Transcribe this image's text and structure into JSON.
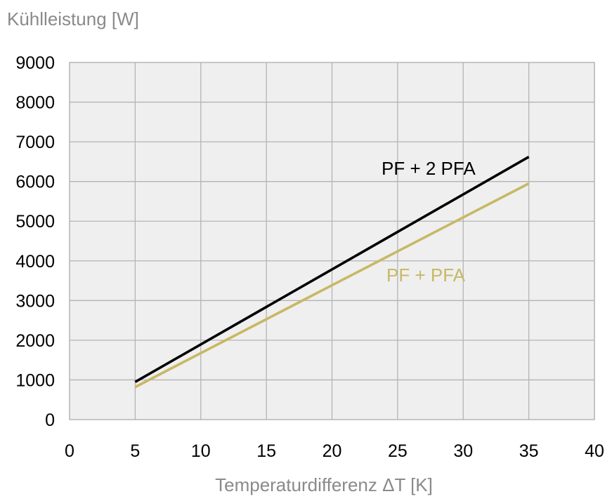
{
  "chart_data": {
    "type": "line",
    "ylabel": "Kühlleistung [W]",
    "xlabel": "Temperaturdifferenz ΔT [K]",
    "xlim": [
      0,
      40
    ],
    "ylim": [
      0,
      9000
    ],
    "x_ticks": [
      "0",
      "5",
      "10",
      "15",
      "20",
      "25",
      "30",
      "35",
      "40"
    ],
    "y_ticks": [
      "0",
      "1000",
      "2000",
      "3000",
      "4000",
      "5000",
      "6000",
      "7000",
      "8000",
      "9000"
    ],
    "grid": true,
    "series": [
      {
        "name": "PF + 2 PFA",
        "color": "#000000",
        "x": [
          5,
          35
        ],
        "y": [
          950,
          6620
        ]
      },
      {
        "name": "PF + PFA",
        "color": "#c8b865",
        "x": [
          5,
          35
        ],
        "y": [
          820,
          5950
        ]
      }
    ]
  },
  "colors": {
    "plot_background": "#efefef",
    "grid": "#b4b4b4",
    "axis_title": "#8a8a8a"
  }
}
